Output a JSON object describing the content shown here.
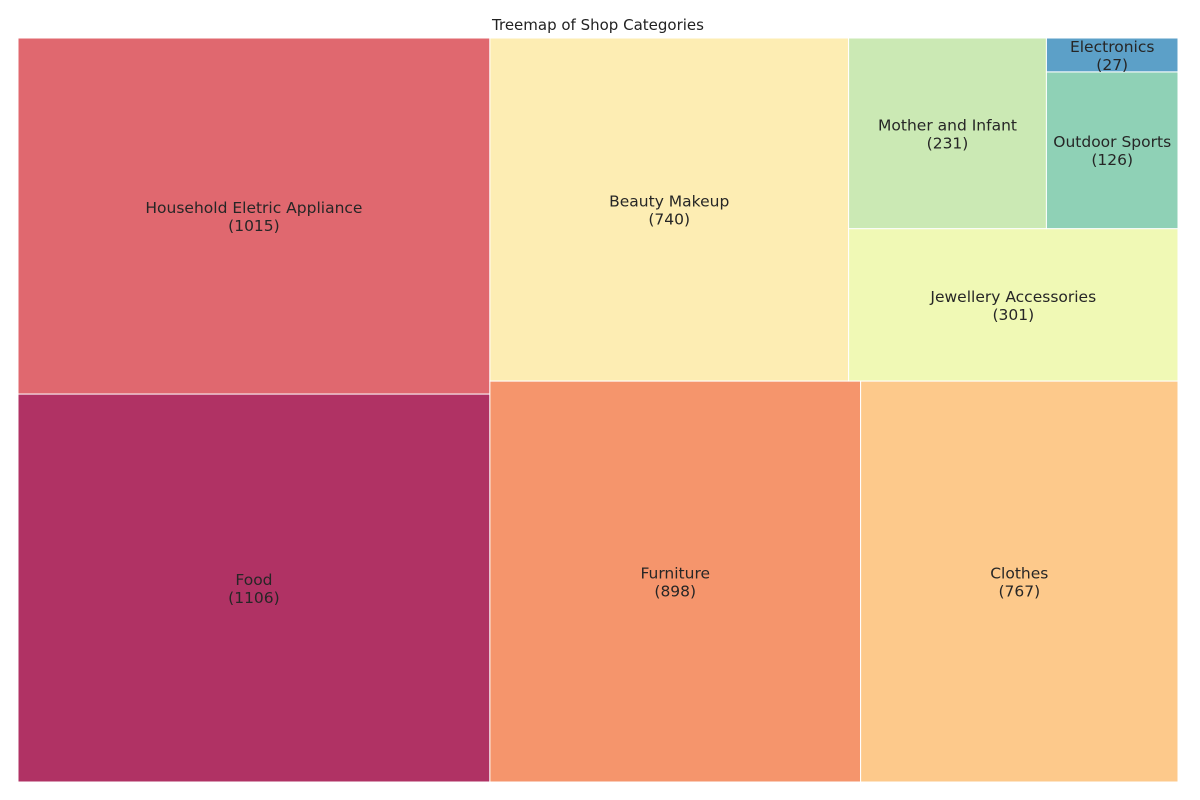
{
  "chart_data": {
    "type": "treemap",
    "title": "Treemap of Shop Categories",
    "items": [
      {
        "label": "Food",
        "value": 1106,
        "value_text": "(1106)",
        "color": "#b03264",
        "x": 0,
        "y": 0,
        "w": 4.0679,
        "h": 3.3531
      },
      {
        "label": "Household Eletric Appliance",
        "value": 1015,
        "value_text": "(1015)",
        "color": "#e0686f",
        "x": 0,
        "y": 3.3531,
        "w": 4.0679,
        "h": 3.0772
      },
      {
        "label": "Furniture",
        "value": 898,
        "value_text": "(898)",
        "color": "#f5956c",
        "x": 4.0679,
        "y": 0,
        "w": 3.196,
        "h": 3.4653
      },
      {
        "label": "Clothes",
        "value": 767,
        "value_text": "(767)",
        "color": "#fdc98b",
        "x": 7.2639,
        "y": 0,
        "w": 2.7361,
        "h": 3.4653
      },
      {
        "label": "Beauty Makeup",
        "value": 740,
        "value_text": "(740)",
        "color": "#fdedb3",
        "x": 4.0679,
        "y": 3.4653,
        "w": 3.0923,
        "h": 2.965
      },
      {
        "label": "Jewellery Accessories",
        "value": 301,
        "value_text": "(301)",
        "color": "#f0f9b5",
        "x": 7.1602,
        "y": 3.4653,
        "w": 2.8398,
        "h": 1.3175
      },
      {
        "label": "Mother and Infant",
        "value": 231,
        "value_text": "(231)",
        "color": "#cbe9b4",
        "x": 7.1602,
        "y": 4.7828,
        "w": 1.7055,
        "h": 1.6475
      },
      {
        "label": "Outdoor Sports",
        "value": 126,
        "value_text": "(126)",
        "color": "#8fd1b6",
        "x": 8.8657,
        "y": 4.7828,
        "w": 1.1343,
        "h": 1.3548
      },
      {
        "label": "Electronics",
        "value": 27,
        "value_text": "(27)",
        "color": "#5ca0c8",
        "x": 8.8657,
        "y": 6.1376,
        "w": 1.1343,
        "h": 0.2927
      }
    ]
  }
}
